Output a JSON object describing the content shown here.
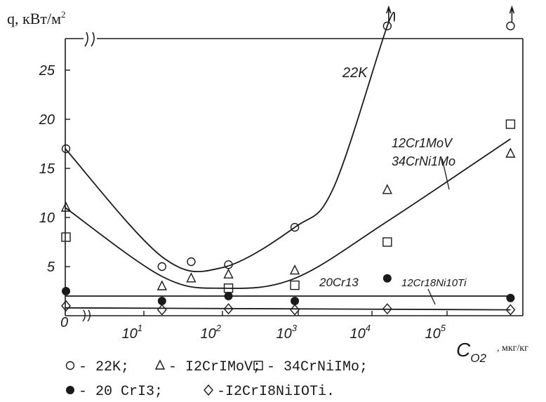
{
  "chart_data": {
    "type": "scatter",
    "ylabel": "q, кВт/м",
    "ylabel_sup": "2",
    "xlabel_main": "C",
    "xlabel_sub": "O2",
    "xlabel_unit": ", мкг/кг",
    "x_scale": "log",
    "xlim": [
      1,
      1000000
    ],
    "ylim": [
      0,
      29
    ],
    "y_ticks": [
      "0",
      "5",
      "10",
      "15",
      "20",
      "25"
    ],
    "x_ticks": [
      {
        "x": 10,
        "label": "10",
        "exp": "1"
      },
      {
        "x": 100,
        "label": "10",
        "exp": "2"
      },
      {
        "x": 1000,
        "label": "10",
        "exp": "3"
      },
      {
        "x": 10000,
        "label": "10",
        "exp": "4"
      },
      {
        "x": 100000,
        "label": "10",
        "exp": "5"
      }
    ],
    "series": [
      {
        "legend": "22K",
        "marker": "circle",
        "points": [
          [
            0,
            17
          ],
          [
            17,
            5
          ],
          [
            40,
            5.5
          ],
          [
            120,
            5.2
          ],
          [
            900,
            9
          ],
          [
            16000,
            29.5
          ],
          [
            700000,
            29.5
          ]
        ]
      },
      {
        "legend": "I2CrIMoV",
        "marker": "triangle",
        "points": [
          [
            0,
            11
          ],
          [
            17,
            3
          ],
          [
            40,
            3.8
          ],
          [
            120,
            4.2
          ],
          [
            900,
            4.6
          ],
          [
            16000,
            12.8
          ],
          [
            700000,
            16.5
          ]
        ]
      },
      {
        "legend": "34CrNiIMo",
        "marker": "square",
        "points": [
          [
            0,
            8
          ],
          [
            120,
            2.8
          ],
          [
            900,
            3.1
          ],
          [
            16000,
            7.5
          ],
          [
            700000,
            19.5
          ]
        ]
      },
      {
        "legend": "20 CrI3",
        "marker": "filled-circle",
        "points": [
          [
            0,
            2.5
          ],
          [
            17,
            1.5
          ],
          [
            120,
            2
          ],
          [
            900,
            1.5
          ],
          [
            16000,
            3.8
          ],
          [
            700000,
            1.8
          ]
        ]
      },
      {
        "legend": "I2CrI8NiIOTi.",
        "marker": "diamond",
        "points": [
          [
            0,
            1
          ],
          [
            17,
            0.6
          ],
          [
            120,
            0.7
          ],
          [
            900,
            0.6
          ],
          [
            16000,
            0.7
          ],
          [
            700000,
            0.6
          ]
        ]
      }
    ],
    "curves": [
      {
        "label": "22K",
        "points": [
          [
            0,
            17
          ],
          [
            17,
            6
          ],
          [
            100,
            4.9
          ],
          [
            900,
            9
          ],
          [
            3000,
            13
          ],
          [
            16000,
            29.5
          ],
          [
            20000,
            30
          ]
        ]
      },
      {
        "label_lines": [
          "12Cr1MoV",
          "34CrNi1Mo"
        ],
        "points": [
          [
            0,
            11
          ],
          [
            17,
            4
          ],
          [
            100,
            2.8
          ],
          [
            900,
            3.8
          ],
          [
            16000,
            9.6
          ],
          [
            700000,
            18
          ]
        ]
      },
      {
        "label": "20Cr13",
        "points": [
          [
            0,
            2
          ],
          [
            700000,
            2
          ]
        ]
      },
      {
        "label": "12Cr18Ni10Ti",
        "points": [
          [
            0,
            0.8
          ],
          [
            700000,
            0.6
          ]
        ]
      }
    ],
    "origin_label": "0",
    "legend_rows": [
      [
        "22K; ",
        "- I2CrIMoV; ",
        "- 34CrNiIMo;"
      ],
      [
        "20 CrI3;",
        "-I2CrI8NiIOTi."
      ]
    ]
  }
}
